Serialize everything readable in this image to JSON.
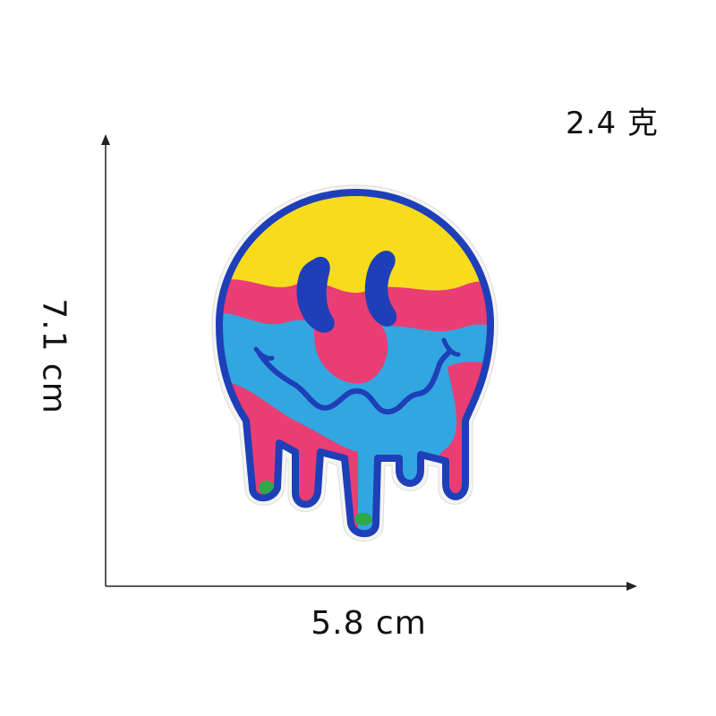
{
  "weight_label": "2.4 克",
  "width_label": "5.8 cm",
  "height_label": "7.1 cm",
  "colors": {
    "border_blue": "#1e3fb8",
    "yellow": "#f7dc1e",
    "pink": "#ea3d74",
    "light_blue": "#32a6e0",
    "green": "#2fa84a"
  },
  "image": "melting-smiley-embroidered-patch"
}
